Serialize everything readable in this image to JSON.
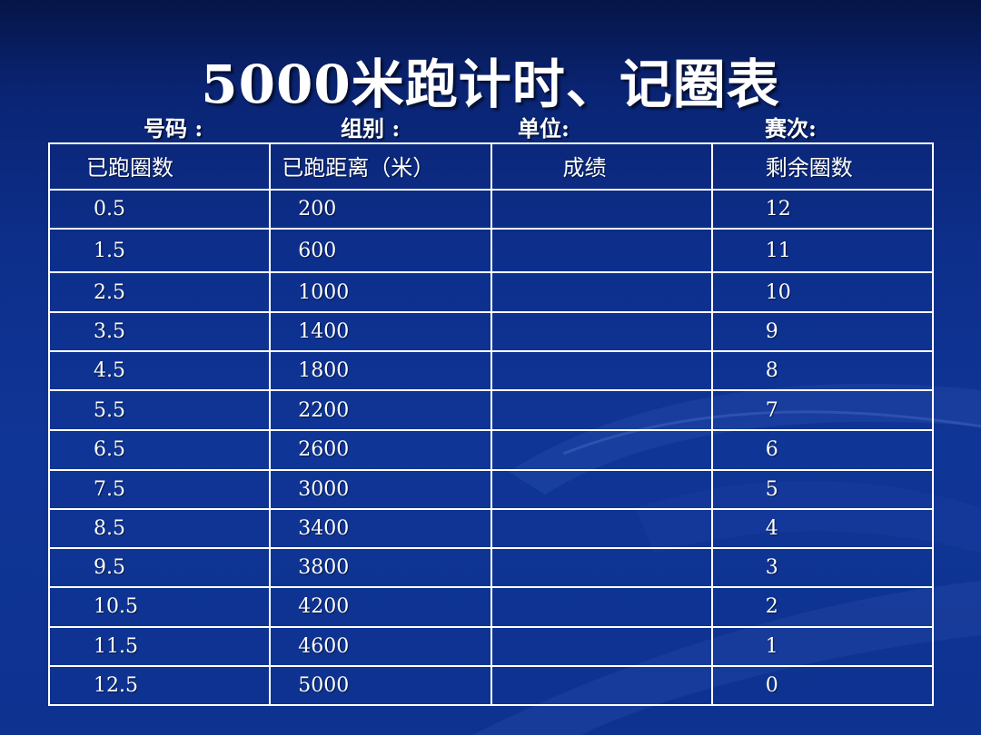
{
  "title": "5000米跑计时、记圈表",
  "meta": {
    "number_label": "号码 :",
    "group_label": "组别 :",
    "unit_label": "单位:",
    "race_label": "赛次:"
  },
  "table": {
    "headers": [
      "已跑圈数",
      "已跑距离（米）",
      "成绩",
      "剩余圈数"
    ],
    "rows": [
      {
        "laps": "0.5",
        "distance": "200",
        "result": "",
        "remaining": "12"
      },
      {
        "laps": "1.5",
        "distance": "600",
        "result": "",
        "remaining": "11"
      },
      {
        "laps": "2.5",
        "distance": "1000",
        "result": "",
        "remaining": "10"
      },
      {
        "laps": "3.5",
        "distance": "1400",
        "result": "",
        "remaining": "9"
      },
      {
        "laps": "4.5",
        "distance": "1800",
        "result": "",
        "remaining": "8"
      },
      {
        "laps": "5.5",
        "distance": "2200",
        "result": "",
        "remaining": "7"
      },
      {
        "laps": "6.5",
        "distance": "2600",
        "result": "",
        "remaining": "6"
      },
      {
        "laps": "7.5",
        "distance": "3000",
        "result": "",
        "remaining": "5"
      },
      {
        "laps": "8.5",
        "distance": "3400",
        "result": "",
        "remaining": "4"
      },
      {
        "laps": "9.5",
        "distance": "3800",
        "result": "",
        "remaining": "3"
      },
      {
        "laps": "10.5",
        "distance": "4200",
        "result": "",
        "remaining": "2"
      },
      {
        "laps": "11.5",
        "distance": "4600",
        "result": "",
        "remaining": "1"
      },
      {
        "laps": "12.5",
        "distance": "5000",
        "result": "",
        "remaining": "0"
      }
    ]
  }
}
